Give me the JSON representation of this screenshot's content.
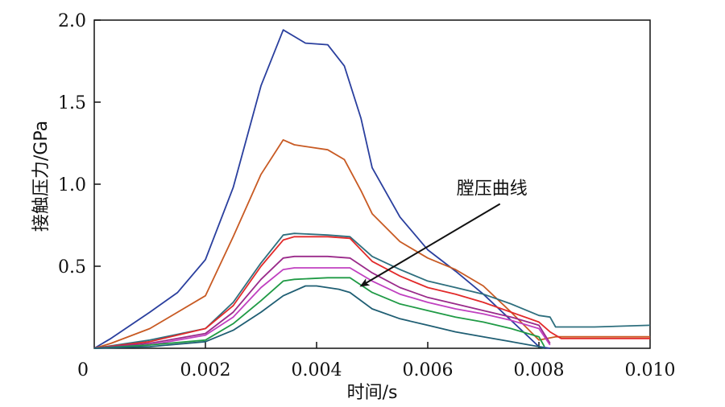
{
  "chart_data": {
    "type": "line",
    "xlabel": "时间/s",
    "ylabel": "接触压力/GPa",
    "xlim": [
      0,
      0.01
    ],
    "ylim": [
      0,
      2.0
    ],
    "x_ticks": [
      0,
      0.002,
      0.004,
      0.006,
      0.008,
      0.01
    ],
    "x_tick_labels": [
      "0",
      "0.002",
      "0.004",
      "0.006",
      "0.008",
      "0.010"
    ],
    "y_ticks": [
      0.5,
      1.0,
      1.5,
      2.0
    ],
    "y_tick_labels": [
      "0.5",
      "1.0",
      "1.5",
      "2.0"
    ],
    "grid": false,
    "annotation": {
      "text": "膛压曲线",
      "arrow_from": [
        0.0073,
        0.88
      ],
      "arrow_to": [
        0.0048,
        0.38
      ]
    },
    "series": [
      {
        "color": "#2a3f9e",
        "points": [
          [
            0,
            0
          ],
          [
            0.0003,
            0.06
          ],
          [
            0.001,
            0.22
          ],
          [
            0.0015,
            0.34
          ],
          [
            0.002,
            0.54
          ],
          [
            0.0025,
            0.98
          ],
          [
            0.003,
            1.6
          ],
          [
            0.0034,
            1.94
          ],
          [
            0.0036,
            1.9
          ],
          [
            0.0038,
            1.86
          ],
          [
            0.0042,
            1.85
          ],
          [
            0.0045,
            1.72
          ],
          [
            0.0048,
            1.4
          ],
          [
            0.005,
            1.1
          ],
          [
            0.0055,
            0.8
          ],
          [
            0.006,
            0.6
          ],
          [
            0.0065,
            0.47
          ],
          [
            0.007,
            0.33
          ],
          [
            0.0075,
            0.17
          ],
          [
            0.008,
            0.01
          ],
          [
            0.0082,
            0
          ]
        ]
      },
      {
        "color": "#c85a23",
        "points": [
          [
            0,
            0
          ],
          [
            0.0003,
            0.03
          ],
          [
            0.001,
            0.12
          ],
          [
            0.0015,
            0.22
          ],
          [
            0.002,
            0.32
          ],
          [
            0.0025,
            0.68
          ],
          [
            0.003,
            1.06
          ],
          [
            0.0034,
            1.27
          ],
          [
            0.0036,
            1.24
          ],
          [
            0.0038,
            1.23
          ],
          [
            0.0042,
            1.21
          ],
          [
            0.0045,
            1.15
          ],
          [
            0.0048,
            0.96
          ],
          [
            0.005,
            0.82
          ],
          [
            0.0055,
            0.65
          ],
          [
            0.006,
            0.55
          ],
          [
            0.0065,
            0.48
          ],
          [
            0.007,
            0.38
          ],
          [
            0.0075,
            0.22
          ],
          [
            0.008,
            0.05
          ],
          [
            0.0083,
            0.07
          ],
          [
            0.009,
            0.07
          ],
          [
            0.01,
            0.07
          ]
        ]
      },
      {
        "color": "#2e6f7e",
        "points": [
          [
            0,
            0
          ],
          [
            0.001,
            0.05
          ],
          [
            0.002,
            0.12
          ],
          [
            0.0025,
            0.28
          ],
          [
            0.003,
            0.52
          ],
          [
            0.0034,
            0.69
          ],
          [
            0.0036,
            0.7
          ],
          [
            0.0042,
            0.69
          ],
          [
            0.0046,
            0.68
          ],
          [
            0.005,
            0.56
          ],
          [
            0.0055,
            0.48
          ],
          [
            0.006,
            0.41
          ],
          [
            0.0065,
            0.37
          ],
          [
            0.007,
            0.33
          ],
          [
            0.0075,
            0.27
          ],
          [
            0.008,
            0.2
          ],
          [
            0.0082,
            0.19
          ],
          [
            0.0083,
            0.13
          ],
          [
            0.009,
            0.13
          ],
          [
            0.01,
            0.14
          ]
        ]
      },
      {
        "color": "#e22a2a",
        "points": [
          [
            0,
            0
          ],
          [
            0.001,
            0.04
          ],
          [
            0.002,
            0.12
          ],
          [
            0.0025,
            0.26
          ],
          [
            0.003,
            0.5
          ],
          [
            0.0034,
            0.66
          ],
          [
            0.0036,
            0.68
          ],
          [
            0.0042,
            0.68
          ],
          [
            0.0046,
            0.67
          ],
          [
            0.005,
            0.53
          ],
          [
            0.0055,
            0.44
          ],
          [
            0.006,
            0.37
          ],
          [
            0.0065,
            0.33
          ],
          [
            0.007,
            0.28
          ],
          [
            0.0075,
            0.22
          ],
          [
            0.008,
            0.16
          ],
          [
            0.0082,
            0.1
          ],
          [
            0.0084,
            0.06
          ],
          [
            0.009,
            0.06
          ],
          [
            0.01,
            0.06
          ]
        ]
      },
      {
        "color": "#9a2a8a",
        "points": [
          [
            0,
            0
          ],
          [
            0.001,
            0.03
          ],
          [
            0.002,
            0.09
          ],
          [
            0.0025,
            0.22
          ],
          [
            0.003,
            0.42
          ],
          [
            0.0034,
            0.55
          ],
          [
            0.0036,
            0.56
          ],
          [
            0.0042,
            0.56
          ],
          [
            0.0046,
            0.55
          ],
          [
            0.005,
            0.46
          ],
          [
            0.0055,
            0.37
          ],
          [
            0.006,
            0.31
          ],
          [
            0.0065,
            0.27
          ],
          [
            0.007,
            0.23
          ],
          [
            0.0075,
            0.19
          ],
          [
            0.008,
            0.14
          ],
          [
            0.0082,
            0.03
          ]
        ]
      },
      {
        "color": "#c040c0",
        "points": [
          [
            0,
            0
          ],
          [
            0.001,
            0.02
          ],
          [
            0.002,
            0.08
          ],
          [
            0.0025,
            0.19
          ],
          [
            0.003,
            0.37
          ],
          [
            0.0034,
            0.48
          ],
          [
            0.0036,
            0.49
          ],
          [
            0.0042,
            0.49
          ],
          [
            0.0046,
            0.49
          ],
          [
            0.005,
            0.41
          ],
          [
            0.0055,
            0.33
          ],
          [
            0.006,
            0.28
          ],
          [
            0.0065,
            0.24
          ],
          [
            0.007,
            0.21
          ],
          [
            0.0075,
            0.17
          ],
          [
            0.008,
            0.12
          ],
          [
            0.0082,
            0.02
          ]
        ]
      },
      {
        "color": "#1f9a45",
        "points": [
          [
            0,
            0
          ],
          [
            0.001,
            0.02
          ],
          [
            0.002,
            0.05
          ],
          [
            0.0025,
            0.15
          ],
          [
            0.003,
            0.29
          ],
          [
            0.0034,
            0.41
          ],
          [
            0.0036,
            0.42
          ],
          [
            0.0042,
            0.43
          ],
          [
            0.0046,
            0.43
          ],
          [
            0.005,
            0.34
          ],
          [
            0.0055,
            0.27
          ],
          [
            0.006,
            0.23
          ],
          [
            0.0065,
            0.19
          ],
          [
            0.007,
            0.16
          ],
          [
            0.0075,
            0.12
          ],
          [
            0.008,
            0.07
          ],
          [
            0.0081,
            0.01
          ]
        ]
      },
      {
        "color": "#1f5e73",
        "points": [
          [
            0,
            0
          ],
          [
            0.001,
            0.01
          ],
          [
            0.002,
            0.04
          ],
          [
            0.0025,
            0.11
          ],
          [
            0.003,
            0.22
          ],
          [
            0.0034,
            0.32
          ],
          [
            0.0038,
            0.38
          ],
          [
            0.004,
            0.38
          ],
          [
            0.0044,
            0.36
          ],
          [
            0.0046,
            0.34
          ],
          [
            0.005,
            0.24
          ],
          [
            0.0055,
            0.18
          ],
          [
            0.006,
            0.14
          ],
          [
            0.0065,
            0.1
          ],
          [
            0.007,
            0.07
          ],
          [
            0.0075,
            0.04
          ],
          [
            0.008,
            0.01
          ],
          [
            0.0081,
            0
          ]
        ]
      }
    ]
  }
}
